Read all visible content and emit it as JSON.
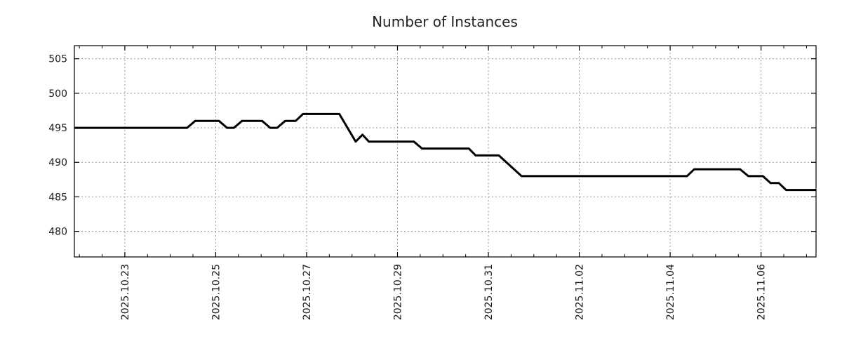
{
  "title": "Number of Instances",
  "style": {
    "background": "#ffffff",
    "line_color": "#000000",
    "grid_color": "#999999",
    "axis_color": "#000000",
    "text_color": "#1a1a1a"
  },
  "chart_data": {
    "type": "line",
    "title": "Number of Instances",
    "xlabel": "",
    "ylabel": "",
    "legend": "none",
    "grid": "dotted, vertical at labeled dates, horizontal at y ticks",
    "x_unit": "days relative to 2025-10-23 00:00",
    "xlim": [
      -1.11,
      15.21
    ],
    "ylim": [
      476.3,
      506.9
    ],
    "y_ticks": [
      480,
      485,
      490,
      495,
      500,
      505
    ],
    "x_minor_tick_step_days": 0.5,
    "x_ticks": [
      {
        "label": "2025.10.23",
        "day": 0
      },
      {
        "label": "2025.10.25",
        "day": 2
      },
      {
        "label": "2025.10.27",
        "day": 4
      },
      {
        "label": "2025.10.29",
        "day": 6
      },
      {
        "label": "2025.10.31",
        "day": 8
      },
      {
        "label": "2025.11.02",
        "day": 10
      },
      {
        "label": "2025.11.04",
        "day": 12
      },
      {
        "label": "2025.11.06",
        "day": 14
      }
    ],
    "series": [
      {
        "name": "instances",
        "color": "#000000",
        "points": [
          [
            -1.11,
            495
          ],
          [
            1.37,
            495
          ],
          [
            1.55,
            496
          ],
          [
            2.07,
            496
          ],
          [
            2.25,
            495
          ],
          [
            2.4,
            495
          ],
          [
            2.58,
            496
          ],
          [
            3.02,
            496
          ],
          [
            3.2,
            495
          ],
          [
            3.35,
            495
          ],
          [
            3.53,
            496
          ],
          [
            3.76,
            496
          ],
          [
            3.92,
            497
          ],
          [
            4.72,
            497
          ],
          [
            5.08,
            493
          ],
          [
            5.23,
            494
          ],
          [
            5.37,
            493
          ],
          [
            6.36,
            493
          ],
          [
            6.54,
            492
          ],
          [
            7.57,
            492
          ],
          [
            7.72,
            491
          ],
          [
            8.23,
            491
          ],
          [
            8.73,
            488
          ],
          [
            12.37,
            488
          ],
          [
            12.53,
            489
          ],
          [
            13.54,
            489
          ],
          [
            13.72,
            488
          ],
          [
            14.04,
            488
          ],
          [
            14.21,
            487
          ],
          [
            14.39,
            487
          ],
          [
            14.55,
            486
          ],
          [
            15.21,
            486
          ]
        ]
      }
    ]
  }
}
